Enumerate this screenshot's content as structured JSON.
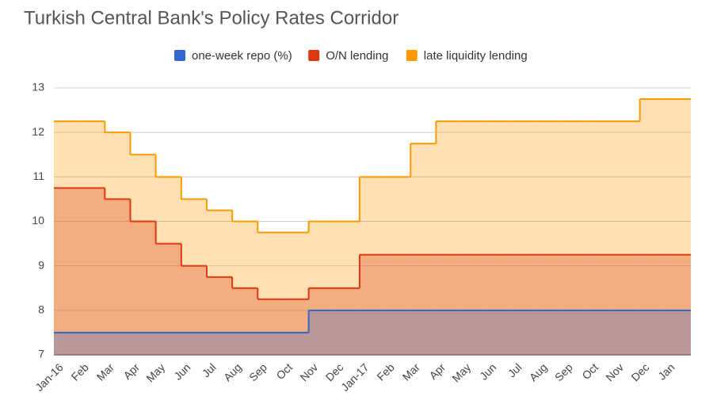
{
  "chart_data": {
    "type": "area",
    "stepped": true,
    "title": "Turkish Central Bank's Policy Rates Corridor",
    "categories": [
      "Jan-16",
      "Feb",
      "Mar",
      "Apr",
      "May",
      "Jun",
      "Jul",
      "Aug",
      "Sep",
      "Oct",
      "Nov",
      "Dec",
      "Jan-17",
      "Feb",
      "Mar",
      "Apr",
      "May",
      "Jun",
      "Jul",
      "Aug",
      "Sep",
      "Oct",
      "Nov",
      "Dec",
      "Jan"
    ],
    "series": [
      {
        "name": "one-week repo (%)",
        "color": "#3366cc",
        "values": [
          7.5,
          7.5,
          7.5,
          7.5,
          7.5,
          7.5,
          7.5,
          7.5,
          7.5,
          7.5,
          8,
          8,
          8,
          8,
          8,
          8,
          8,
          8,
          8,
          8,
          8,
          8,
          8,
          8,
          8
        ]
      },
      {
        "name": "O/N lending",
        "color": "#dc3912",
        "values": [
          10.75,
          10.75,
          10.5,
          10,
          9.5,
          9,
          8.75,
          8.5,
          8.25,
          8.25,
          8.5,
          8.5,
          9.25,
          9.25,
          9.25,
          9.25,
          9.25,
          9.25,
          9.25,
          9.25,
          9.25,
          9.25,
          9.25,
          9.25,
          9.25
        ]
      },
      {
        "name": "late liquidity lending",
        "color": "#ff9900",
        "values": [
          12.25,
          12.25,
          12,
          11.5,
          11,
          10.5,
          10.25,
          10,
          9.75,
          9.75,
          10,
          10,
          11,
          11,
          11.75,
          12.25,
          12.25,
          12.25,
          12.25,
          12.25,
          12.25,
          12.25,
          12.25,
          12.75,
          12.75
        ]
      }
    ],
    "ylim": [
      7,
      13
    ],
    "yticks": [
      7,
      8,
      9,
      10,
      11,
      12,
      13
    ],
    "grid": true,
    "legend": "top"
  }
}
